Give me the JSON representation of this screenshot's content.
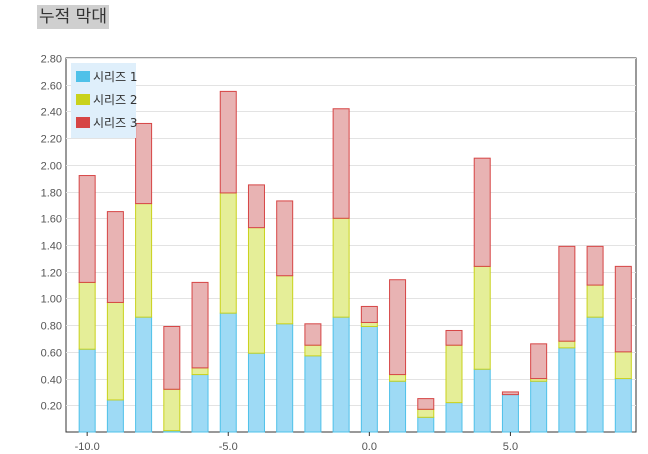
{
  "title": "누적 막대",
  "chart_data": {
    "type": "bar",
    "stacked": true,
    "x": [
      -10,
      -9,
      -8,
      -7,
      -6,
      -5,
      -4,
      -3,
      -2,
      -1,
      0,
      1,
      2,
      3,
      4,
      5,
      6,
      7,
      8,
      9
    ],
    "x_ticks": [
      "-10.0",
      "-5.0",
      "0.0",
      "5.0"
    ],
    "y_ticks": [
      "0.20",
      "0.40",
      "0.60",
      "0.80",
      "1.00",
      "1.20",
      "1.40",
      "1.60",
      "1.80",
      "2.00",
      "2.20",
      "2.40",
      "2.60",
      "2.80"
    ],
    "ylim": [
      0,
      2.8
    ],
    "grid": true,
    "legend_position": "top-left",
    "series": [
      {
        "name": "시리즈 1",
        "color": "#4fc1e9",
        "fill": "#9edaf5",
        "values": [
          0.62,
          0.24,
          0.86,
          0.01,
          0.43,
          0.89,
          0.59,
          0.81,
          0.57,
          0.86,
          0.79,
          0.38,
          0.11,
          0.22,
          0.47,
          0.28,
          0.38,
          0.63,
          0.86,
          0.4
        ]
      },
      {
        "name": "시리즈 2",
        "color": "#c9d21c",
        "fill": "#e5ee98",
        "values": [
          0.5,
          0.73,
          0.85,
          0.31,
          0.05,
          0.9,
          0.94,
          0.36,
          0.08,
          0.74,
          0.03,
          0.05,
          0.06,
          0.43,
          0.77,
          0.0,
          0.02,
          0.05,
          0.24,
          0.2
        ]
      },
      {
        "name": "시리즈 3",
        "color": "#d64545",
        "fill": "#e8b3b3",
        "values": [
          0.8,
          0.68,
          0.6,
          0.47,
          0.64,
          0.76,
          0.32,
          0.56,
          0.16,
          0.82,
          0.12,
          0.71,
          0.08,
          0.11,
          0.81,
          0.02,
          0.26,
          0.71,
          0.29,
          0.64
        ]
      }
    ]
  }
}
